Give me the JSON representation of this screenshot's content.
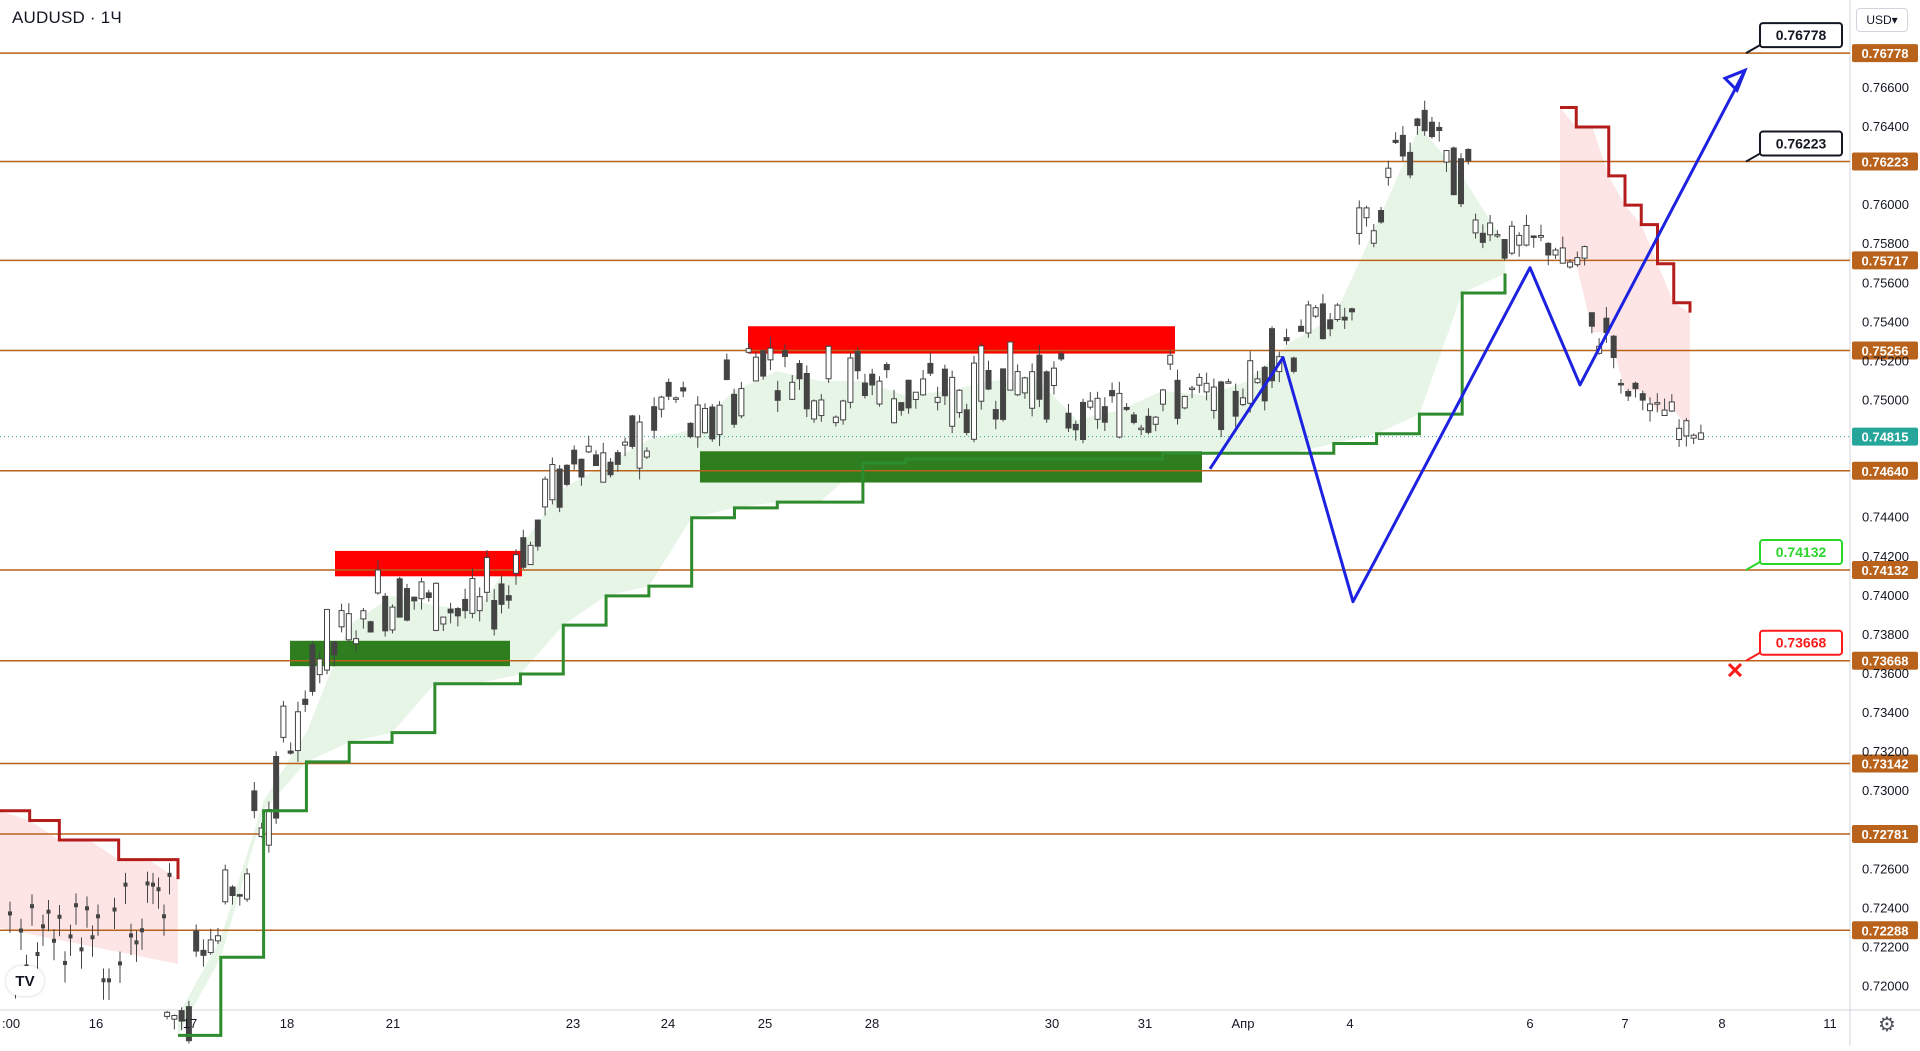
{
  "symbol": "AUDUSD · 1Ч",
  "currency_selector": "USD",
  "logo_text": "TV",
  "settings_icon": "gear-icon",
  "colors": {
    "level_line": "#b8621b",
    "level_tag": "#b8621b",
    "candle": "#444444",
    "supertrend_up": "#2e8b2e",
    "supertrend_down": "#b51d1d",
    "fill_up": "#e3f3e3",
    "fill_down": "#fde0e0",
    "resistance_zone": "#ff0000",
    "support_zone": "#2e7d1e",
    "projection": "#1c22e0",
    "tp_callout_green": "#2bd62b",
    "sl_callout_red": "#ff1a1a"
  },
  "chart_data": {
    "type": "candlestick",
    "title": "AUDUSD · 1Ч",
    "ylim": [
      0.7188,
      0.7705
    ],
    "x_tick_labels": [
      ":00",
      "16",
      "17",
      "18",
      "21",
      "23",
      "24",
      "25",
      "28",
      "30",
      "31",
      "Апр",
      "4",
      "6",
      "7",
      "8",
      "11"
    ],
    "y_tick_labels": [
      "0.76600",
      "0.76400",
      "0.76000",
      "0.75800",
      "0.75600",
      "0.75400",
      "0.75200",
      "0.75000",
      "0.74400",
      "0.74200",
      "0.74000",
      "0.73800",
      "0.73600",
      "0.73400",
      "0.73200",
      "0.73000",
      "0.72600",
      "0.72400",
      "0.72200",
      "0.72000"
    ],
    "levels": [
      "0.76778",
      "0.76223",
      "0.75717",
      "0.75256",
      "0.74640",
      "0.74132",
      "0.73668",
      "0.73142",
      "0.72781",
      "0.72288"
    ],
    "current_price": "0.74815",
    "callouts": [
      {
        "label": "0.76778",
        "style": "target"
      },
      {
        "label": "0.76223",
        "style": "target"
      },
      {
        "label": "0.74132",
        "style": "take-profit"
      },
      {
        "label": "0.73668",
        "style": "stop-loss"
      }
    ],
    "zones": [
      {
        "kind": "resistance",
        "from": 0.741,
        "to": 0.7423
      },
      {
        "kind": "support",
        "from": 0.7364,
        "to": 0.7377
      },
      {
        "kind": "resistance",
        "from": 0.7524,
        "to": 0.7538
      },
      {
        "kind": "support",
        "from": 0.7458,
        "to": 0.7474
      }
    ],
    "price_path": [
      [
        0.717,
        0.72
      ],
      [
        0.7215,
        0.7235
      ],
      [
        0.724,
        0.726
      ],
      [
        0.727,
        0.732
      ],
      [
        0.731,
        0.735
      ],
      [
        0.735,
        0.7395
      ],
      [
        0.7375,
        0.7395
      ],
      [
        0.738,
        0.742
      ],
      [
        0.7385,
        0.7415
      ],
      [
        0.738,
        0.741
      ],
      [
        0.7375,
        0.741
      ],
      [
        0.738,
        0.742
      ],
      [
        0.741,
        0.744
      ],
      [
        0.744,
        0.747
      ],
      [
        0.746,
        0.749
      ],
      [
        0.7455,
        0.748
      ],
      [
        0.746,
        0.75
      ],
      [
        0.749,
        0.751
      ],
      [
        0.747,
        0.75
      ],
      [
        0.748,
        0.753
      ],
      [
        0.751,
        0.7535
      ],
      [
        0.75,
        0.753
      ],
      [
        0.749,
        0.753
      ],
      [
        0.7485,
        0.753
      ],
      [
        0.7495,
        0.7525
      ],
      [
        0.7485,
        0.752
      ],
      [
        0.749,
        0.752
      ],
      [
        0.748,
        0.752
      ],
      [
        0.749,
        0.753
      ],
      [
        0.7495,
        0.753
      ],
      [
        0.749,
        0.7525
      ],
      [
        0.748,
        0.75
      ],
      [
        0.748,
        0.751
      ],
      [
        0.748,
        0.7515
      ],
      [
        0.7485,
        0.7525
      ],
      [
        0.749,
        0.7515
      ],
      [
        0.7485,
        0.751
      ],
      [
        0.7495,
        0.7525
      ],
      [
        0.751,
        0.755
      ],
      [
        0.753,
        0.755
      ],
      [
        0.7535,
        0.755
      ],
      [
        0.758,
        0.76
      ],
      [
        0.761,
        0.764
      ],
      [
        0.763,
        0.765
      ],
      [
        0.76,
        0.763
      ],
      [
        0.758,
        0.76
      ],
      [
        0.757,
        0.759
      ],
      [
        0.757,
        0.759
      ],
      [
        0.756,
        0.758
      ],
      [
        0.752,
        0.755
      ],
      [
        0.75,
        0.751
      ],
      [
        0.749,
        0.75
      ],
      [
        0.748,
        0.749
      ]
    ],
    "supertrend_segments": [
      {
        "dir": "down",
        "values": [
          0.729,
          0.7285,
          0.7275,
          0.7275,
          0.7265,
          0.7265,
          0.7255
        ]
      },
      {
        "dir": "up",
        "values": [
          0.7175,
          0.7215,
          0.729,
          0.7315,
          0.7325,
          0.733,
          0.7355,
          0.7355,
          0.736,
          0.7385,
          0.74,
          0.7405,
          0.744,
          0.7445,
          0.7448,
          0.7448,
          0.7468,
          0.747,
          0.747,
          0.747,
          0.747,
          0.747,
          0.747,
          0.7473,
          0.7473,
          0.7473,
          0.7473,
          0.7478,
          0.7483,
          0.7493,
          0.7555,
          0.7565
        ]
      },
      {
        "dir": "down",
        "values": [
          0.765,
          0.764,
          0.764,
          0.7615,
          0.76,
          0.759,
          0.757,
          0.755,
          0.7545
        ]
      }
    ],
    "projection_path": [
      [
        0.7465,
        0.7522,
        0.7397,
        0.7568,
        0.7508,
        0.7669
      ]
    ]
  }
}
